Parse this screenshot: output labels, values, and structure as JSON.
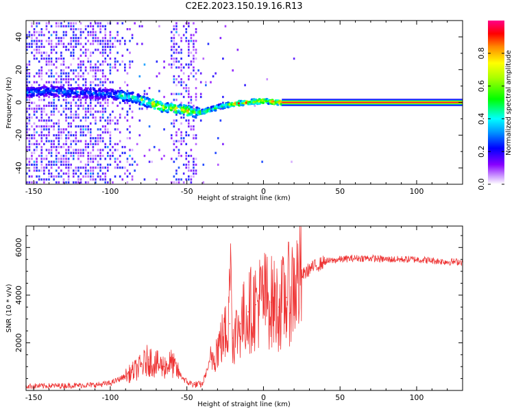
{
  "title": "C2E2.2023.150.19.16.R13",
  "chart_data": [
    {
      "type": "heatmap",
      "xlabel": "Height of straight line (km)",
      "ylabel": "Frequency (Hz)",
      "xlim": [
        -155,
        130
      ],
      "ylim": [
        -50,
        50
      ],
      "xticks": [
        -150,
        -100,
        -50,
        0,
        50,
        100
      ],
      "yticks": [
        -40,
        -20,
        0,
        20,
        40
      ],
      "grid": false,
      "colorbar": {
        "label": "Normalized spectral amplitude",
        "range": [
          0,
          1
        ],
        "ticks": [
          0.0,
          0.2,
          0.4,
          0.6,
          0.8
        ]
      },
      "ridge": {
        "description_values": "dominant frequency vs height",
        "x": [
          -155,
          -140,
          -120,
          -100,
          -85,
          -75,
          -65,
          -55,
          -45,
          -40,
          -30,
          -20,
          -10,
          0,
          10,
          20,
          130
        ],
        "y": [
          6,
          7,
          6,
          5,
          3,
          0,
          -3,
          -4,
          -6,
          -6,
          -3,
          -1,
          0,
          1,
          0,
          0,
          0
        ]
      }
    },
    {
      "type": "line",
      "xlabel": "Height of straight line (km)",
      "ylabel": "SNR (10 * v/v)",
      "xlim": [
        -155,
        130
      ],
      "ylim": [
        0,
        6900
      ],
      "xticks": [
        -150,
        -100,
        -50,
        0,
        50,
        100
      ],
      "yticks": [
        2000,
        4000,
        6000
      ],
      "series": [
        {
          "name": "SNR",
          "color": "#ee3333",
          "x": [
            -155,
            -130,
            -110,
            -100,
            -90,
            -80,
            -75,
            -70,
            -65,
            -60,
            -55,
            -50,
            -45,
            -40,
            -35,
            -30,
            -25,
            -22,
            -20,
            -15,
            -10,
            -5,
            0,
            5,
            10,
            15,
            20,
            25,
            30,
            40,
            50,
            60,
            70,
            80,
            90,
            100,
            110,
            120,
            130
          ],
          "y": [
            180,
            200,
            230,
            300,
            600,
            1000,
            1300,
            1100,
            1000,
            1150,
            700,
            350,
            250,
            250,
            1200,
            1800,
            2400,
            2800,
            2200,
            2800,
            3300,
            3600,
            3900,
            3700,
            3500,
            3900,
            4400,
            4800,
            5100,
            5400,
            5500,
            5550,
            5550,
            5500,
            5500,
            5500,
            5450,
            5400,
            5400
          ]
        }
      ]
    }
  ]
}
